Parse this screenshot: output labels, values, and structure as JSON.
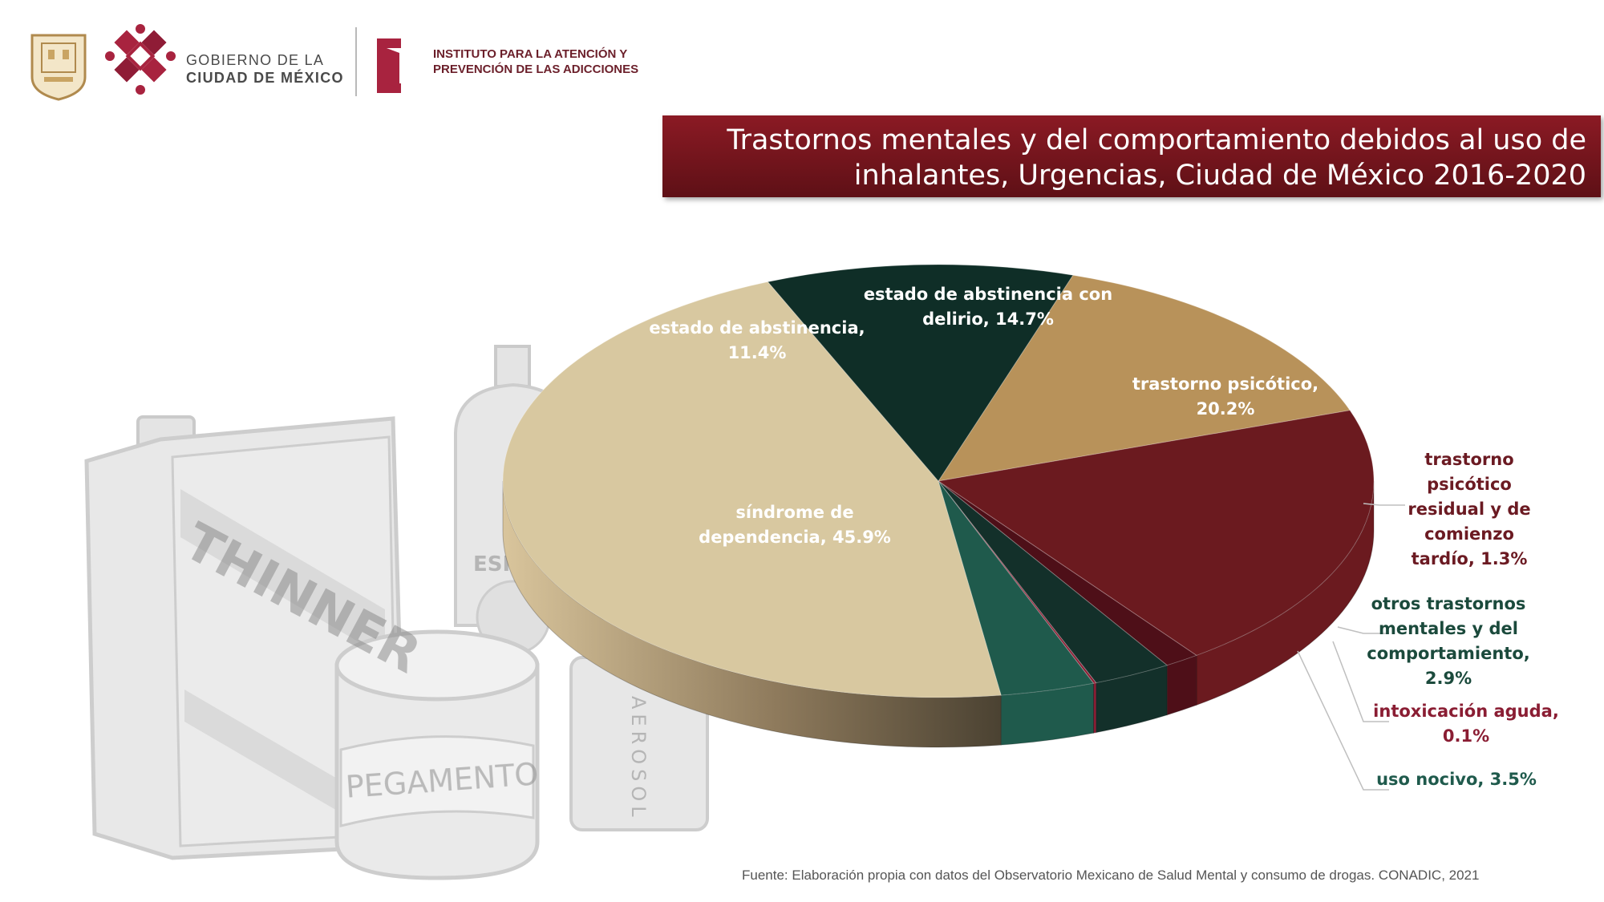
{
  "header": {
    "gov_line1": "GOBIERNO DE LA",
    "gov_line2": "CIUDAD DE MÉXICO",
    "iapa_line1": "INSTITUTO PARA LA ATENCIÓN Y",
    "iapa_line2": "PREVENCIÓN DE LAS ADICCIONES"
  },
  "illustration": {
    "can_labels": [
      "THINNER",
      "PEGAMENTO",
      "ESP",
      "AEROSOL"
    ]
  },
  "chart_data": {
    "type": "pie",
    "title_line1": "Trastornos mentales y del comportamiento debidos al uso de",
    "title_line2": "inhalantes, Urgencias, Ciudad de México 2016-2020",
    "slices": [
      {
        "lines": [
          "estado de abstinencia con",
          "delirio, 14.7%"
        ],
        "value": 14.7,
        "color": "#b8925a"
      },
      {
        "lines": [
          "trastorno psicótico,",
          "20.2%"
        ],
        "value": 20.2,
        "color": "#6b1a1f"
      },
      {
        "lines": [
          "trastorno",
          "psicótico",
          "residual y de",
          "comienzo",
          "tardío, 1.3%"
        ],
        "value": 1.3,
        "color": "#4e0f18"
      },
      {
        "lines": [
          "otros trastornos",
          "mentales y del",
          "comportamiento,",
          "2.9%"
        ],
        "value": 2.9,
        "color": "#13302a"
      },
      {
        "lines": [
          "intoxicación aguda,",
          "0.1%"
        ],
        "value": 0.1,
        "color": "#8a1d33"
      },
      {
        "lines": [
          "uso nocivo, 3.5%"
        ],
        "value": 3.5,
        "color": "#1f5a4c"
      },
      {
        "lines": [
          "síndrome de",
          "dependencia, 45.9%"
        ],
        "value": 45.9,
        "color": "#d8c8a0"
      },
      {
        "lines": [
          "estado de abstinencia,",
          "11.4%"
        ],
        "value": 11.4,
        "color": "#0f2e27"
      }
    ],
    "legend": "none"
  },
  "footer": {
    "source": "Fuente: Elaboración propia con datos del Observatorio Mexicano de Salud Mental y consumo de drogas. CONADIC, 2021"
  }
}
